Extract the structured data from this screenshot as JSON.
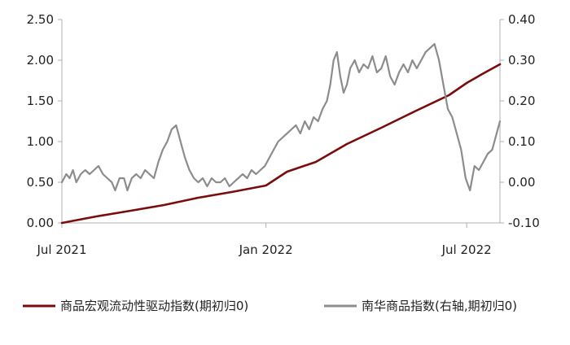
{
  "chart_data": {
    "type": "line",
    "x_ticks": [
      "Jul 2021",
      "Jan 2022",
      "Jul 2022"
    ],
    "y_left": {
      "range": [
        0,
        2.5
      ],
      "ticks": [
        "0.00",
        "0.50",
        "1.00",
        "1.50",
        "2.00",
        "2.50"
      ]
    },
    "y_right": {
      "range": [
        -0.1,
        0.4
      ],
      "ticks": [
        "-0.10",
        "0.00",
        "0.10",
        "0.20",
        "0.30",
        "0.40"
      ]
    },
    "grid": false,
    "legend_position": "bottom",
    "series": [
      {
        "name": "商品宏观流动性驱动指数(期初归0)",
        "axis": "left",
        "color": "#7a0c0c",
        "points": [
          [
            "2021-07-01",
            0.0
          ],
          [
            "2021-08-01",
            0.08
          ],
          [
            "2021-09-01",
            0.15
          ],
          [
            "2021-10-01",
            0.22
          ],
          [
            "2021-11-01",
            0.31
          ],
          [
            "2021-12-01",
            0.38
          ],
          [
            "2022-01-01",
            0.46
          ],
          [
            "2022-01-20",
            0.63
          ],
          [
            "2022-02-15",
            0.75
          ],
          [
            "2022-03-15",
            0.97
          ],
          [
            "2022-04-15",
            1.17
          ],
          [
            "2022-05-15",
            1.37
          ],
          [
            "2022-06-15",
            1.57
          ],
          [
            "2022-07-01",
            1.72
          ],
          [
            "2022-07-15",
            1.83
          ],
          [
            "2022-07-31",
            1.95
          ]
        ]
      },
      {
        "name": "南华商品指数(右轴,期初归0)",
        "axis": "right",
        "color": "#8c8c8c",
        "points": [
          [
            "2021-07-01",
            0.0
          ],
          [
            "2021-07-05",
            0.02
          ],
          [
            "2021-07-08",
            0.01
          ],
          [
            "2021-07-11",
            0.03
          ],
          [
            "2021-07-14",
            0.0
          ],
          [
            "2021-07-18",
            0.02
          ],
          [
            "2021-07-22",
            0.03
          ],
          [
            "2021-07-26",
            0.02
          ],
          [
            "2021-07-30",
            0.03
          ],
          [
            "2021-08-03",
            0.04
          ],
          [
            "2021-08-07",
            0.02
          ],
          [
            "2021-08-11",
            0.01
          ],
          [
            "2021-08-15",
            0.0
          ],
          [
            "2021-08-18",
            -0.02
          ],
          [
            "2021-08-22",
            0.01
          ],
          [
            "2021-08-26",
            0.01
          ],
          [
            "2021-08-29",
            -0.02
          ],
          [
            "2021-09-02",
            0.01
          ],
          [
            "2021-09-06",
            0.02
          ],
          [
            "2021-09-10",
            0.01
          ],
          [
            "2021-09-14",
            0.03
          ],
          [
            "2021-09-18",
            0.02
          ],
          [
            "2021-09-22",
            0.01
          ],
          [
            "2021-09-26",
            0.05
          ],
          [
            "2021-09-30",
            0.08
          ],
          [
            "2021-10-04",
            0.1
          ],
          [
            "2021-10-08",
            0.13
          ],
          [
            "2021-10-12",
            0.14
          ],
          [
            "2021-10-16",
            0.1
          ],
          [
            "2021-10-20",
            0.06
          ],
          [
            "2021-10-24",
            0.03
          ],
          [
            "2021-10-28",
            0.01
          ],
          [
            "2021-11-01",
            0.0
          ],
          [
            "2021-11-05",
            0.01
          ],
          [
            "2021-11-09",
            -0.01
          ],
          [
            "2021-11-13",
            0.01
          ],
          [
            "2021-11-17",
            0.0
          ],
          [
            "2021-11-21",
            0.0
          ],
          [
            "2021-11-25",
            0.01
          ],
          [
            "2021-11-29",
            -0.01
          ],
          [
            "2021-12-03",
            0.0
          ],
          [
            "2021-12-07",
            0.01
          ],
          [
            "2021-12-11",
            0.02
          ],
          [
            "2021-12-15",
            0.01
          ],
          [
            "2021-12-19",
            0.03
          ],
          [
            "2021-12-23",
            0.02
          ],
          [
            "2021-12-27",
            0.03
          ],
          [
            "2021-12-31",
            0.04
          ],
          [
            "2022-01-04",
            0.06
          ],
          [
            "2022-01-08",
            0.08
          ],
          [
            "2022-01-12",
            0.1
          ],
          [
            "2022-01-16",
            0.11
          ],
          [
            "2022-01-20",
            0.12
          ],
          [
            "2022-01-24",
            0.13
          ],
          [
            "2022-01-28",
            0.14
          ],
          [
            "2022-02-01",
            0.12
          ],
          [
            "2022-02-05",
            0.15
          ],
          [
            "2022-02-09",
            0.13
          ],
          [
            "2022-02-13",
            0.16
          ],
          [
            "2022-02-17",
            0.15
          ],
          [
            "2022-02-21",
            0.18
          ],
          [
            "2022-02-25",
            0.2
          ],
          [
            "2022-02-28",
            0.24
          ],
          [
            "2022-03-03",
            0.3
          ],
          [
            "2022-03-06",
            0.32
          ],
          [
            "2022-03-09",
            0.26
          ],
          [
            "2022-03-12",
            0.22
          ],
          [
            "2022-03-15",
            0.24
          ],
          [
            "2022-03-18",
            0.28
          ],
          [
            "2022-03-22",
            0.3
          ],
          [
            "2022-03-26",
            0.27
          ],
          [
            "2022-03-30",
            0.29
          ],
          [
            "2022-04-03",
            0.28
          ],
          [
            "2022-04-07",
            0.31
          ],
          [
            "2022-04-11",
            0.27
          ],
          [
            "2022-04-15",
            0.28
          ],
          [
            "2022-04-19",
            0.31
          ],
          [
            "2022-04-23",
            0.26
          ],
          [
            "2022-04-27",
            0.24
          ],
          [
            "2022-05-01",
            0.27
          ],
          [
            "2022-05-05",
            0.29
          ],
          [
            "2022-05-09",
            0.27
          ],
          [
            "2022-05-13",
            0.3
          ],
          [
            "2022-05-17",
            0.28
          ],
          [
            "2022-05-21",
            0.3
          ],
          [
            "2022-05-25",
            0.32
          ],
          [
            "2022-05-29",
            0.33
          ],
          [
            "2022-06-02",
            0.34
          ],
          [
            "2022-06-06",
            0.3
          ],
          [
            "2022-06-10",
            0.24
          ],
          [
            "2022-06-14",
            0.18
          ],
          [
            "2022-06-18",
            0.16
          ],
          [
            "2022-06-22",
            0.12
          ],
          [
            "2022-06-26",
            0.08
          ],
          [
            "2022-06-30",
            0.01
          ],
          [
            "2022-07-04",
            -0.02
          ],
          [
            "2022-07-08",
            0.04
          ],
          [
            "2022-07-12",
            0.03
          ],
          [
            "2022-07-16",
            0.05
          ],
          [
            "2022-07-20",
            0.07
          ],
          [
            "2022-07-24",
            0.08
          ],
          [
            "2022-07-28",
            0.12
          ],
          [
            "2022-07-31",
            0.15
          ]
        ]
      }
    ]
  }
}
